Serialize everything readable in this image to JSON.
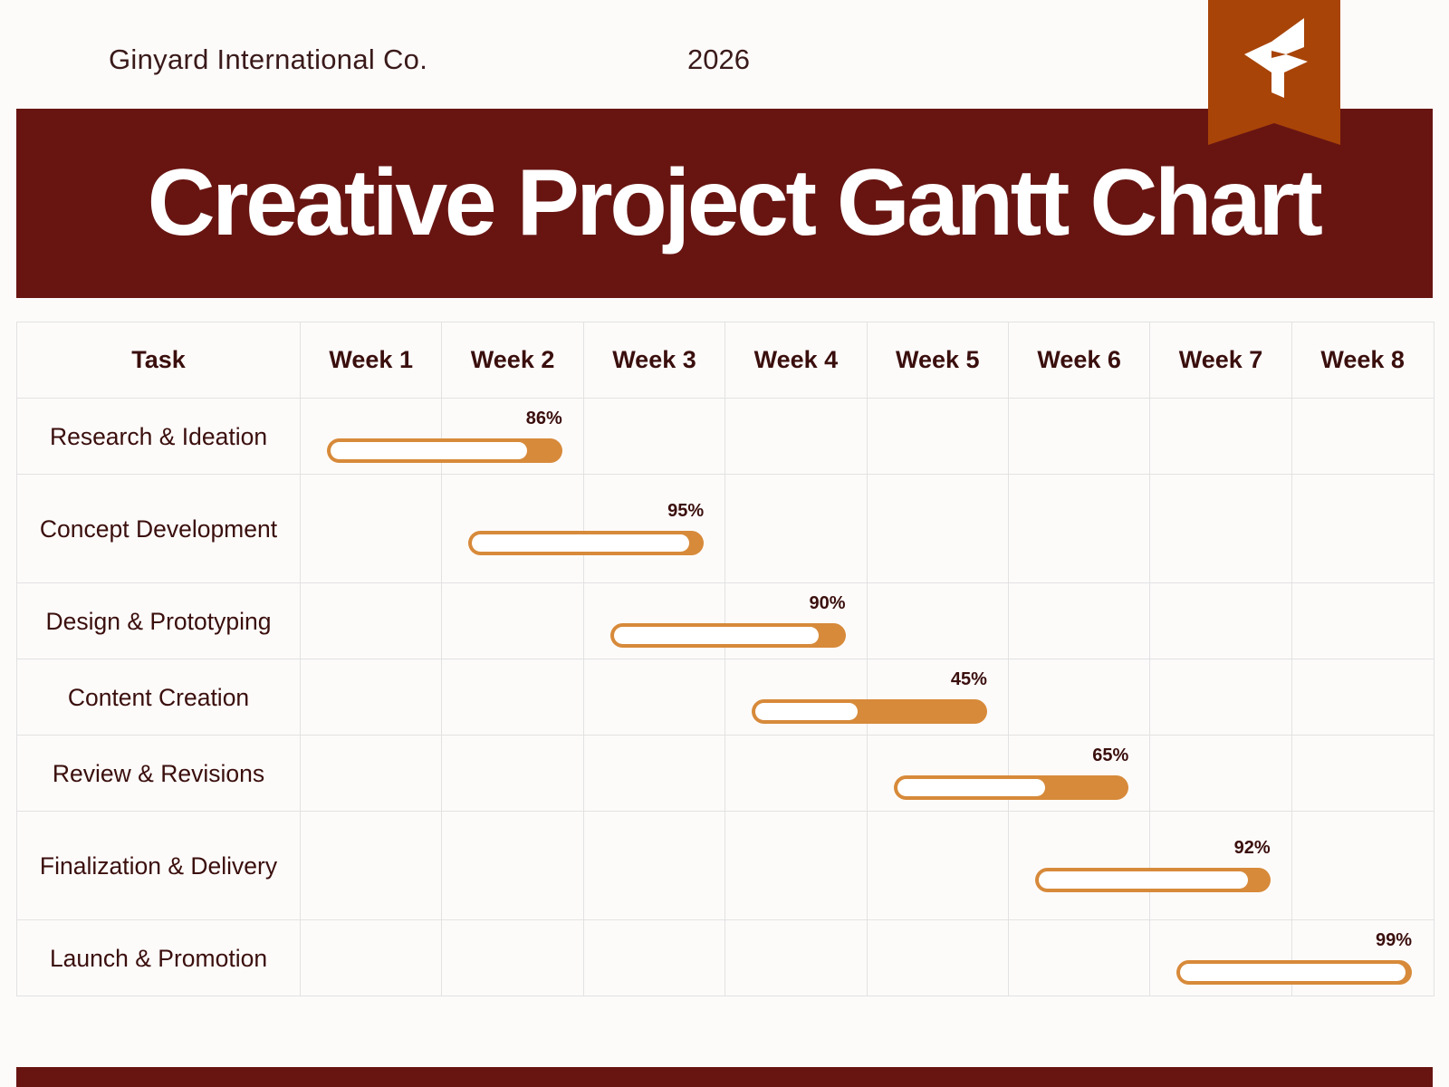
{
  "header": {
    "company": "Ginyard International Co.",
    "year": "2026",
    "title": "Creative Project Gantt Chart",
    "logo_icon": "arrow-logo-icon"
  },
  "colors": {
    "banner": "#681512",
    "ribbon": "#a84408",
    "bar": "#d78a3a",
    "bar_inner": "#ffffff",
    "text": "#3a0f0d"
  },
  "chart_data": {
    "type": "gantt",
    "title": "Creative Project Gantt Chart",
    "columns": [
      "Task",
      "Week 1",
      "Week 2",
      "Week 3",
      "Week 4",
      "Week 5",
      "Week 6",
      "Week 7",
      "Week 8"
    ],
    "tasks": [
      {
        "name": "Research & Ideation",
        "start_week": 1,
        "end_week": 2,
        "progress": "86%"
      },
      {
        "name": "Concept Development",
        "start_week": 2,
        "end_week": 3,
        "progress": "95%"
      },
      {
        "name": "Design & Prototyping",
        "start_week": 3,
        "end_week": 4,
        "progress": "90%"
      },
      {
        "name": "Content Creation",
        "start_week": 4,
        "end_week": 5,
        "progress": "45%"
      },
      {
        "name": "Review & Revisions",
        "start_week": 5,
        "end_week": 6,
        "progress": "65%"
      },
      {
        "name": "Finalization & Delivery",
        "start_week": 6,
        "end_week": 7,
        "progress": "92%"
      },
      {
        "name": "Launch & Promotion",
        "start_week": 7,
        "end_week": 8,
        "progress": "99%"
      }
    ]
  }
}
